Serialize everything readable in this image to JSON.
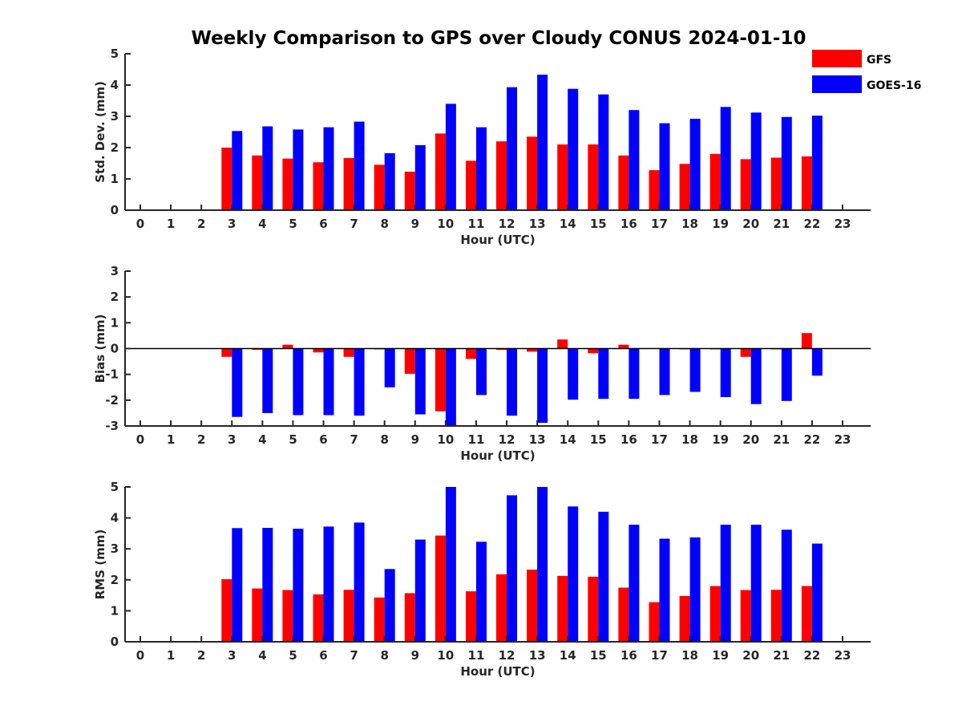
{
  "title": "Weekly Comparison to GPS over Cloudy CONUS 2024-01-10",
  "colors": {
    "GFS": "#ff0000",
    "GOES-16": "#0000ff"
  },
  "legend": {
    "placement": "top-right",
    "entries": [
      "GFS",
      "GOES-16"
    ]
  },
  "chart_data": [
    {
      "type": "bar",
      "xlabel": "Hour (UTC)",
      "ylabel": "Std. Dev. (mm)",
      "ylim": [
        0,
        5
      ],
      "yticks": [
        "0",
        "1",
        "2",
        "3",
        "4",
        "5"
      ],
      "categories": [
        "0",
        "1",
        "2",
        "3",
        "4",
        "5",
        "6",
        "7",
        "8",
        "9",
        "10",
        "11",
        "12",
        "13",
        "14",
        "15",
        "16",
        "17",
        "18",
        "19",
        "20",
        "21",
        "22",
        "23"
      ],
      "series": [
        {
          "name": "GFS",
          "values": [
            null,
            null,
            null,
            2.0,
            1.75,
            1.65,
            1.53,
            1.67,
            1.45,
            1.23,
            2.45,
            1.58,
            2.2,
            2.35,
            2.1,
            2.1,
            1.75,
            1.28,
            1.48,
            1.8,
            1.63,
            1.68,
            1.72,
            null
          ]
        },
        {
          "name": "GOES-16",
          "values": [
            null,
            null,
            null,
            2.53,
            2.68,
            2.58,
            2.65,
            2.83,
            1.82,
            2.08,
            3.4,
            2.65,
            3.93,
            4.33,
            3.88,
            3.7,
            3.2,
            2.78,
            2.92,
            3.3,
            3.12,
            2.98,
            3.02,
            null
          ]
        }
      ]
    },
    {
      "type": "bar",
      "xlabel": "Hour (UTC)",
      "ylabel": "Bias (mm)",
      "ylim": [
        -3,
        3
      ],
      "yticks": [
        "-3",
        "-2",
        "-1",
        "0",
        "1",
        "2",
        "3"
      ],
      "categories": [
        "0",
        "1",
        "2",
        "3",
        "4",
        "5",
        "6",
        "7",
        "8",
        "9",
        "10",
        "11",
        "12",
        "13",
        "14",
        "15",
        "16",
        "17",
        "18",
        "19",
        "20",
        "21",
        "22",
        "23"
      ],
      "series": [
        {
          "name": "GFS",
          "values": [
            null,
            null,
            null,
            -0.32,
            -0.05,
            0.15,
            -0.15,
            -0.32,
            -0.03,
            -0.98,
            -2.43,
            -0.4,
            -0.05,
            -0.12,
            0.35,
            -0.18,
            0.15,
            0.02,
            -0.02,
            -0.02,
            -0.32,
            -0.02,
            0.6,
            null
          ]
        },
        {
          "name": "GOES-16",
          "values": [
            null,
            null,
            null,
            -2.65,
            -2.5,
            -2.58,
            -2.58,
            -2.6,
            -1.5,
            -2.55,
            -3.0,
            -1.8,
            -2.6,
            -2.88,
            -1.98,
            -1.95,
            -1.95,
            -1.8,
            -1.68,
            -1.88,
            -2.15,
            -2.03,
            -1.05,
            null
          ]
        }
      ]
    },
    {
      "type": "bar",
      "xlabel": "Hour (UTC)",
      "ylabel": "RMS (mm)",
      "ylim": [
        0,
        5
      ],
      "yticks": [
        "0",
        "1",
        "2",
        "3",
        "4",
        "5"
      ],
      "categories": [
        "0",
        "1",
        "2",
        "3",
        "4",
        "5",
        "6",
        "7",
        "8",
        "9",
        "10",
        "11",
        "12",
        "13",
        "14",
        "15",
        "16",
        "17",
        "18",
        "19",
        "20",
        "21",
        "22",
        "23"
      ],
      "series": [
        {
          "name": "GFS",
          "values": [
            null,
            null,
            null,
            2.02,
            1.72,
            1.67,
            1.53,
            1.68,
            1.43,
            1.57,
            3.43,
            1.63,
            2.18,
            2.33,
            2.13,
            2.1,
            1.75,
            1.28,
            1.48,
            1.8,
            1.67,
            1.68,
            1.8,
            null
          ]
        },
        {
          "name": "GOES-16",
          "values": [
            null,
            null,
            null,
            3.67,
            3.68,
            3.65,
            3.72,
            3.85,
            2.35,
            3.3,
            5.0,
            3.23,
            4.73,
            5.0,
            4.37,
            4.2,
            3.78,
            3.33,
            3.37,
            3.78,
            3.78,
            3.62,
            3.17,
            null
          ]
        }
      ]
    }
  ]
}
